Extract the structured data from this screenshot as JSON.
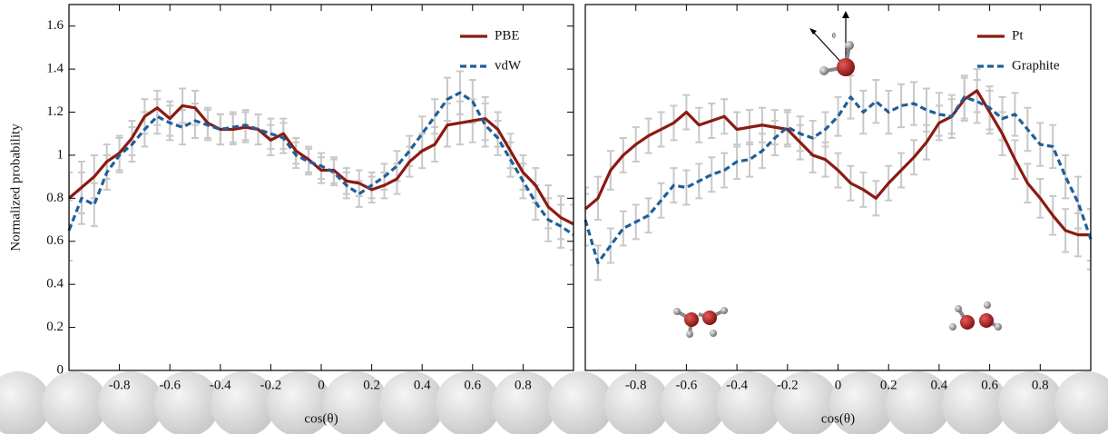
{
  "chart_data": [
    {
      "type": "line",
      "ylabel": "Normalized probability",
      "xlabel": "cos(θ)",
      "xlim": [
        -1,
        1
      ],
      "ylim": [
        0,
        1.7
      ],
      "xticks": [
        -0.8,
        -0.6,
        -0.4,
        -0.2,
        0,
        0.2,
        0.4,
        0.6,
        0.8
      ],
      "yticks": [
        0,
        0.2,
        0.4,
        0.6,
        0.8,
        1,
        1.2,
        1.4,
        1.6
      ],
      "legend": "upper right",
      "x": [
        -1,
        -0.95,
        -0.9,
        -0.85,
        -0.8,
        -0.75,
        -0.7,
        -0.65,
        -0.6,
        -0.55,
        -0.5,
        -0.45,
        -0.4,
        -0.35,
        -0.3,
        -0.25,
        -0.2,
        -0.15,
        -0.1,
        -0.05,
        0,
        0.05,
        0.1,
        0.15,
        0.2,
        0.25,
        0.3,
        0.35,
        0.4,
        0.45,
        0.5,
        0.55,
        0.6,
        0.65,
        0.7,
        0.75,
        0.8,
        0.85,
        0.9,
        0.95,
        1
      ],
      "series": [
        {
          "name": "PBE",
          "color": "#8b1a10",
          "dash": false,
          "values": [
            0.8,
            0.85,
            0.9,
            0.97,
            1.01,
            1.08,
            1.18,
            1.22,
            1.17,
            1.23,
            1.22,
            1.15,
            1.12,
            1.12,
            1.13,
            1.12,
            1.07,
            1.1,
            1.02,
            0.98,
            0.93,
            0.93,
            0.88,
            0.87,
            0.84,
            0.86,
            0.89,
            0.97,
            1.02,
            1.05,
            1.14,
            1.15,
            1.16,
            1.17,
            1.12,
            1.02,
            0.92,
            0.86,
            0.76,
            0.71,
            0.68
          ],
          "errors": [
            0.12,
            0.12,
            0.1,
            0.08,
            0.08,
            0.08,
            0.08,
            0.08,
            0.08,
            0.08,
            0.08,
            0.07,
            0.07,
            0.07,
            0.07,
            0.07,
            0.07,
            0.07,
            0.06,
            0.06,
            0.06,
            0.06,
            0.06,
            0.06,
            0.06,
            0.06,
            0.07,
            0.07,
            0.08,
            0.08,
            0.1,
            0.1,
            0.1,
            0.1,
            0.08,
            0.08,
            0.08,
            0.08,
            0.1,
            0.1,
            0.12
          ]
        },
        {
          "name": "vdW",
          "color": "#1f5f99",
          "dash": true,
          "values": [
            0.65,
            0.8,
            0.77,
            0.92,
            1.0,
            1.05,
            1.12,
            1.18,
            1.15,
            1.13,
            1.16,
            1.14,
            1.12,
            1.13,
            1.14,
            1.12,
            1.1,
            1.08,
            1.0,
            0.97,
            0.95,
            0.92,
            0.86,
            0.82,
            0.86,
            0.9,
            0.95,
            1.02,
            1.1,
            1.18,
            1.26,
            1.29,
            1.25,
            1.14,
            1.08,
            0.98,
            0.88,
            0.78,
            0.7,
            0.67,
            0.63
          ],
          "errors": [
            0.14,
            0.12,
            0.1,
            0.08,
            0.08,
            0.08,
            0.08,
            0.08,
            0.08,
            0.08,
            0.08,
            0.07,
            0.07,
            0.07,
            0.07,
            0.07,
            0.07,
            0.07,
            0.06,
            0.06,
            0.06,
            0.06,
            0.06,
            0.06,
            0.06,
            0.06,
            0.07,
            0.07,
            0.08,
            0.08,
            0.1,
            0.1,
            0.1,
            0.1,
            0.08,
            0.08,
            0.08,
            0.08,
            0.1,
            0.1,
            0.14
          ]
        }
      ]
    },
    {
      "type": "line",
      "xlabel": "cos(θ)",
      "xlim": [
        -1,
        1
      ],
      "ylim": [
        0,
        1.7
      ],
      "xticks": [
        -0.8,
        -0.6,
        -0.4,
        -0.2,
        0,
        0.2,
        0.4,
        0.6,
        0.8
      ],
      "legend": "upper right",
      "x": [
        -1,
        -0.95,
        -0.9,
        -0.85,
        -0.8,
        -0.75,
        -0.7,
        -0.65,
        -0.6,
        -0.55,
        -0.5,
        -0.45,
        -0.4,
        -0.35,
        -0.3,
        -0.25,
        -0.2,
        -0.15,
        -0.1,
        -0.05,
        0,
        0.05,
        0.1,
        0.15,
        0.2,
        0.25,
        0.3,
        0.35,
        0.4,
        0.45,
        0.5,
        0.55,
        0.6,
        0.65,
        0.7,
        0.75,
        0.8,
        0.85,
        0.9,
        0.95,
        1
      ],
      "series": [
        {
          "name": "Pt",
          "color": "#8b1a10",
          "dash": false,
          "values": [
            0.75,
            0.8,
            0.93,
            1.0,
            1.05,
            1.09,
            1.12,
            1.15,
            1.2,
            1.14,
            1.16,
            1.18,
            1.12,
            1.13,
            1.14,
            1.13,
            1.12,
            1.06,
            1.0,
            0.98,
            0.93,
            0.87,
            0.84,
            0.8,
            0.87,
            0.93,
            0.99,
            1.06,
            1.15,
            1.18,
            1.26,
            1.3,
            1.2,
            1.1,
            0.98,
            0.87,
            0.8,
            0.72,
            0.65,
            0.63,
            0.63
          ],
          "errors": [
            0.1,
            0.1,
            0.09,
            0.08,
            0.08,
            0.08,
            0.08,
            0.08,
            0.08,
            0.08,
            0.08,
            0.08,
            0.08,
            0.08,
            0.08,
            0.08,
            0.08,
            0.08,
            0.08,
            0.08,
            0.08,
            0.08,
            0.08,
            0.08,
            0.08,
            0.08,
            0.08,
            0.08,
            0.08,
            0.08,
            0.1,
            0.1,
            0.1,
            0.1,
            0.09,
            0.09,
            0.09,
            0.09,
            0.1,
            0.1,
            0.12
          ]
        },
        {
          "name": "Graphite",
          "color": "#1f5f99",
          "dash": true,
          "values": [
            0.7,
            0.5,
            0.58,
            0.66,
            0.69,
            0.72,
            0.79,
            0.86,
            0.85,
            0.88,
            0.91,
            0.93,
            0.97,
            0.98,
            1.02,
            1.08,
            1.13,
            1.1,
            1.08,
            1.12,
            1.18,
            1.27,
            1.2,
            1.25,
            1.2,
            1.23,
            1.24,
            1.21,
            1.19,
            1.18,
            1.27,
            1.25,
            1.22,
            1.17,
            1.19,
            1.12,
            1.05,
            1.04,
            0.9,
            0.78,
            0.61
          ],
          "errors": [
            0.12,
            0.08,
            0.08,
            0.08,
            0.08,
            0.08,
            0.08,
            0.08,
            0.08,
            0.08,
            0.08,
            0.08,
            0.08,
            0.08,
            0.08,
            0.08,
            0.08,
            0.08,
            0.08,
            0.08,
            0.09,
            0.1,
            0.1,
            0.1,
            0.1,
            0.1,
            0.1,
            0.1,
            0.1,
            0.1,
            0.1,
            0.1,
            0.1,
            0.1,
            0.1,
            0.1,
            0.1,
            0.1,
            0.1,
            0.12,
            0.14
          ]
        }
      ]
    }
  ]
}
